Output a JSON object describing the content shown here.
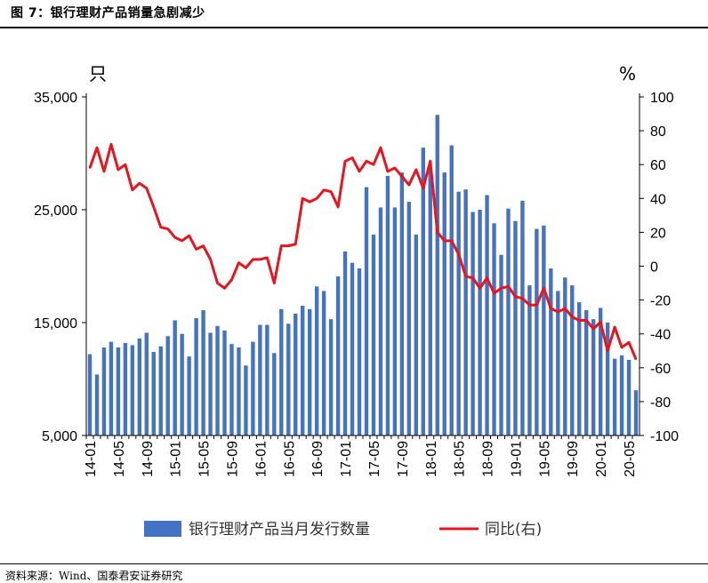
{
  "header": {
    "title": "图 7：银行理财产品销量急剧减少"
  },
  "footer": {
    "source": "资料来源：Wind、国泰君安证券研究"
  },
  "chart_data": {
    "type": "bar",
    "x": [
      "14-01",
      "14-02",
      "14-03",
      "14-04",
      "14-05",
      "14-06",
      "14-07",
      "14-08",
      "14-09",
      "14-10",
      "14-11",
      "14-12",
      "15-01",
      "15-02",
      "15-03",
      "15-04",
      "15-05",
      "15-06",
      "15-07",
      "15-08",
      "15-09",
      "15-10",
      "15-11",
      "15-12",
      "16-01",
      "16-02",
      "16-03",
      "16-04",
      "16-05",
      "16-06",
      "16-07",
      "16-08",
      "16-09",
      "16-10",
      "16-11",
      "16-12",
      "17-01",
      "17-02",
      "17-03",
      "17-04",
      "17-05",
      "17-06",
      "17-07",
      "17-08",
      "17-09",
      "17-10",
      "17-11",
      "17-12",
      "18-01",
      "18-02",
      "18-03",
      "18-04",
      "18-05",
      "18-06",
      "18-07",
      "18-08",
      "18-09",
      "18-10",
      "18-11",
      "18-12",
      "19-01",
      "19-02",
      "19-03",
      "19-04",
      "19-05",
      "19-06",
      "19-07",
      "19-08",
      "19-09",
      "19-10",
      "19-11",
      "19-12",
      "20-01",
      "20-02",
      "20-03",
      "20-04",
      "20-05",
      "20-06"
    ],
    "tick_labels": [
      "14-01",
      "14-05",
      "14-09",
      "15-01",
      "15-05",
      "15-09",
      "16-01",
      "16-05",
      "16-09",
      "17-01",
      "17-05",
      "17-09",
      "18-01",
      "18-05",
      "18-09",
      "19-01",
      "19-05",
      "19-09",
      "20-01",
      "20-05"
    ],
    "series": [
      {
        "name": "银行理财产品当月发行数量",
        "axis": "left",
        "color": "#4472C4",
        "values": [
          12200,
          10400,
          12800,
          13300,
          12800,
          13200,
          13000,
          13600,
          14100,
          12400,
          12900,
          13800,
          15200,
          14000,
          12000,
          15400,
          16100,
          14100,
          14700,
          14300,
          13100,
          12800,
          11200,
          13300,
          14800,
          14800,
          12300,
          16200,
          14900,
          15800,
          16500,
          16200,
          18200,
          17800,
          15300,
          19100,
          21300,
          20300,
          19800,
          27000,
          22800,
          25200,
          28000,
          25200,
          28300,
          25700,
          22800,
          30500,
          28800,
          33400,
          28300,
          30700,
          26600,
          26800,
          24800,
          25000,
          26300,
          23800,
          21000,
          25100,
          24000,
          25800,
          18300,
          23300,
          23600,
          19800,
          17800,
          19000,
          18300,
          16800,
          16100,
          15300,
          16300,
          15000,
          11800,
          12100,
          11700,
          9000
        ]
      },
      {
        "name": "同比(右)",
        "axis": "right",
        "color": "#E8141E",
        "values": [
          58,
          70,
          56,
          72,
          57,
          60,
          45,
          49,
          46,
          35,
          23,
          22,
          17,
          15,
          18,
          10,
          12,
          4,
          -10,
          -13,
          -8,
          2,
          -1,
          4,
          4,
          5,
          -10,
          12,
          12,
          13,
          40,
          38,
          40,
          45,
          44,
          35,
          62,
          64,
          56,
          62,
          60,
          70,
          56,
          58,
          53,
          48,
          57,
          46,
          62,
          20,
          15,
          15,
          7,
          -6,
          -7,
          -13,
          -7,
          -16,
          -13,
          -12,
          -18,
          -19,
          -23,
          -23,
          -13,
          -25,
          -27,
          -25,
          -30,
          -32,
          -32,
          -37,
          -33,
          -50,
          -36,
          -48,
          -45,
          -55
        ]
      }
    ],
    "left_axis": {
      "unit": "只",
      "min": 5000,
      "max": 35000,
      "ticks": [
        5000,
        15000,
        25000,
        35000
      ],
      "tick_labels": [
        "5,000",
        "15,000",
        "25,000",
        "35,000"
      ]
    },
    "right_axis": {
      "unit": "%",
      "min": -100,
      "max": 100,
      "ticks": [
        -100,
        -80,
        -60,
        -40,
        -20,
        0,
        20,
        40,
        60,
        80,
        100
      ],
      "tick_labels": [
        "-100",
        "-80",
        "-60",
        "-40",
        "-20",
        "0",
        "20",
        "40",
        "60",
        "80",
        "100"
      ]
    },
    "legend": {
      "placement": "bottom-center",
      "bar_label": "银行理财产品当月发行数量",
      "line_label": "同比(右)"
    },
    "grid": false
  }
}
